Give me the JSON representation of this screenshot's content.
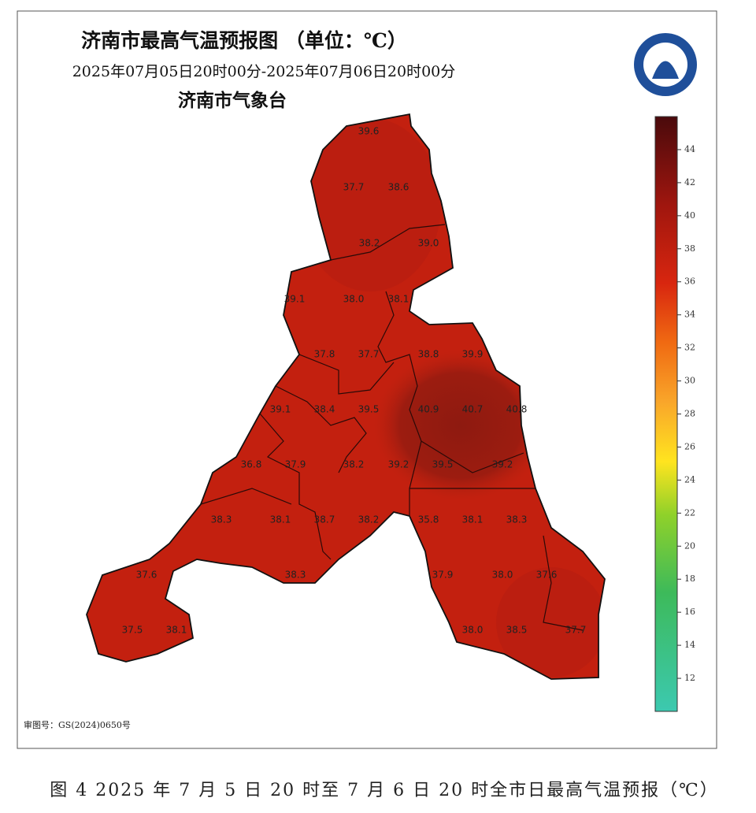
{
  "header": {
    "title": "济南市最高气温预报图 （单位：℃）",
    "time_range": "2025年07月05日20时00分-2025年07月06日20时00分",
    "agency": "济南市气象台"
  },
  "stations": [
    "39.6",
    "37.7",
    "38.6",
    "38.2",
    "39.0",
    "39.1",
    "38.0",
    "38.1",
    "37.8",
    "37.7",
    "38.8",
    "39.9",
    "39.1",
    "38.4",
    "39.5",
    "40.9",
    "40.7",
    "40.8",
    "36.8",
    "37.9",
    "38.2",
    "39.2",
    "39.5",
    "39.2",
    "38.3",
    "38.1",
    "38.7",
    "38.2",
    "35.8",
    "38.1",
    "38.3",
    "37.6",
    "38.3",
    "37.9",
    "38.0",
    "37.6",
    "37.5",
    "38.1",
    "38.0",
    "38.5",
    "37.7"
  ],
  "colorbar": {
    "range": [
      10,
      46
    ],
    "ticks": [
      12,
      14,
      16,
      18,
      20,
      22,
      24,
      26,
      28,
      30,
      32,
      34,
      36,
      38,
      40,
      42,
      44
    ]
  },
  "footer": {
    "review_number": "审图号：GS(2024)0650号"
  },
  "caption": "图 4 2025 年 7 月 5 日 20 时至 7 月 6 日 20 时全市日最高气温预报（℃）"
}
